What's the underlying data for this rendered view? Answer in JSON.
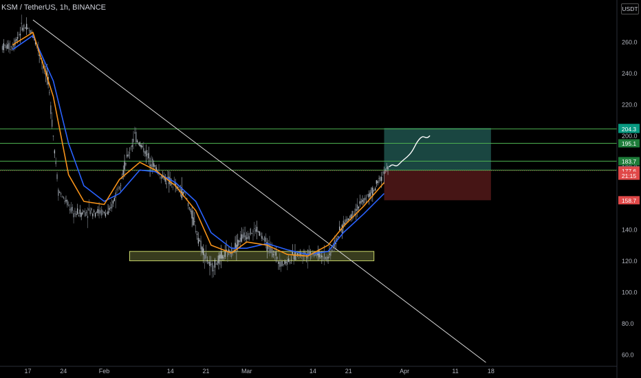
{
  "header": {
    "title": "KSM / TetherUS, 1h, BINANCE",
    "currency": "USDT"
  },
  "colors": {
    "background": "#000000",
    "up": "#b8bfc8",
    "down": "#7e858e",
    "ema_fast": "#f7931a",
    "ema_slow": "#2962ff",
    "hline": "#4caf50",
    "trendline": "#d9d9d9",
    "zone": "#c8d66a",
    "target": "#1b4a45",
    "stop": "#4a1616",
    "projection": "#ffffff",
    "axis_text": "#b2b5be"
  },
  "chart_data": {
    "type": "line",
    "chart_style": "candlestick",
    "symbol": "KSM / TetherUS",
    "interval": "1h",
    "exchange": "BINANCE",
    "ylim": [
      55,
      275
    ],
    "y_ticks": [
      "60.0",
      "80.0",
      "100.0",
      "120.0",
      "140.0",
      "160.0",
      "180.0",
      "200.0",
      "220.0",
      "240.0",
      "260.0"
    ],
    "y_tick_values": [
      60,
      80,
      100,
      120,
      140,
      160,
      180,
      200,
      220,
      240,
      260
    ],
    "x_ticks": [
      "17",
      "24",
      "Feb",
      "14",
      "21",
      "Mar",
      "14",
      "21",
      "Apr",
      "11",
      "18"
    ],
    "x_tick_dates": [
      "2022-01-17",
      "2022-01-24",
      "2022-02-01",
      "2022-02-14",
      "2022-02-21",
      "2022-03-01",
      "2022-03-14",
      "2022-03-21",
      "2022-04-01",
      "2022-04-11",
      "2022-04-18"
    ],
    "series": [
      {
        "key": "price",
        "x": [
          "2022-01-14",
          "2022-01-16",
          "2022-01-18",
          "2022-01-21",
          "2022-01-23",
          "2022-01-26",
          "2022-01-30",
          "2022-02-02",
          "2022-02-05",
          "2022-02-07",
          "2022-02-09",
          "2022-02-12",
          "2022-02-14",
          "2022-02-17",
          "2022-02-20",
          "2022-02-22",
          "2022-02-24",
          "2022-02-26",
          "2022-02-28",
          "2022-03-03",
          "2022-03-05",
          "2022-03-08",
          "2022-03-11",
          "2022-03-14",
          "2022-03-17",
          "2022-03-20",
          "2022-03-23",
          "2022-03-26",
          "2022-03-28"
        ],
        "values": [
          257,
          270,
          265,
          235,
          165,
          150,
          152,
          150,
          180,
          200,
          190,
          175,
          170,
          162,
          130,
          115,
          122,
          126,
          135,
          140,
          130,
          118,
          124,
          125,
          122,
          143,
          155,
          165,
          178
        ]
      },
      {
        "key": "ema_fast",
        "x": [
          "2022-01-14",
          "2022-01-18",
          "2022-01-22",
          "2022-01-25",
          "2022-01-28",
          "2022-02-01",
          "2022-02-04",
          "2022-02-08",
          "2022-02-11",
          "2022-02-15",
          "2022-02-19",
          "2022-02-22",
          "2022-02-26",
          "2022-03-01",
          "2022-03-05",
          "2022-03-09",
          "2022-03-13",
          "2022-03-17",
          "2022-03-20",
          "2022-03-24",
          "2022-03-28"
        ],
        "values": [
          258,
          266,
          225,
          175,
          158,
          156,
          172,
          183,
          178,
          168,
          152,
          130,
          125,
          132,
          130,
          124,
          123,
          130,
          142,
          155,
          170
        ]
      },
      {
        "key": "ema_slow",
        "x": [
          "2022-01-14",
          "2022-01-18",
          "2022-01-22",
          "2022-01-25",
          "2022-01-28",
          "2022-02-01",
          "2022-02-04",
          "2022-02-08",
          "2022-02-11",
          "2022-02-15",
          "2022-02-19",
          "2022-02-22",
          "2022-02-26",
          "2022-03-01",
          "2022-03-05",
          "2022-03-09",
          "2022-03-13",
          "2022-03-17",
          "2022-03-20",
          "2022-03-24",
          "2022-03-28"
        ],
        "values": [
          255,
          264,
          235,
          195,
          168,
          158,
          163,
          178,
          177,
          170,
          158,
          138,
          128,
          128,
          131,
          127,
          124,
          126,
          138,
          150,
          163
        ]
      },
      {
        "key": "projection",
        "x": [
          "2022-03-29",
          "2022-03-31",
          "2022-04-02",
          "2022-04-04",
          "2022-04-06"
        ],
        "values": [
          180,
          182,
          188,
          198,
          200
        ]
      }
    ],
    "horizontal_lines": [
      204.3,
      195.1,
      183.7,
      177.9,
      177.6
    ],
    "trendline": {
      "x": [
        "2022-01-18",
        "2022-04-17"
      ],
      "y": [
        274,
        55
      ]
    },
    "support_zone": {
      "x": [
        "2022-02-06",
        "2022-03-26"
      ],
      "y": [
        120,
        126
      ]
    },
    "target_zone": {
      "x": [
        "2022-03-28",
        "2022-04-18"
      ],
      "y": [
        177.6,
        204.9
      ]
    },
    "stop_zone": {
      "x": [
        "2022-03-28",
        "2022-04-18"
      ],
      "y": [
        158.7,
        177.6
      ]
    },
    "labels": [
      {
        "text": "204.9",
        "value": 204.9,
        "color": "#089981"
      },
      {
        "text": "204.3",
        "value": 204.3,
        "color": "#089981"
      },
      {
        "text": "195.1",
        "value": 195.1,
        "color": "#1e7d3a"
      },
      {
        "text": "183.7",
        "value": 183.7,
        "color": "#1e7d3a"
      },
      {
        "text": "177.9",
        "value": 177.9,
        "color": "#787b86"
      },
      {
        "text": "177.6",
        "value": 177.6,
        "color": "#e04848"
      },
      {
        "text": "21:15",
        "value": 174.4,
        "color": "#e04848"
      },
      {
        "text": "158.7",
        "value": 158.7,
        "color": "#e04848"
      }
    ]
  }
}
